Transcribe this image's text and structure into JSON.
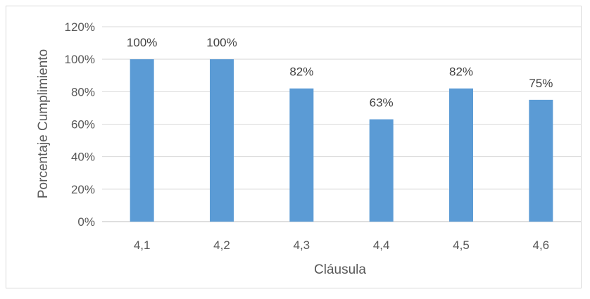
{
  "chart_data": {
    "type": "bar",
    "categories": [
      "4,1",
      "4,2",
      "4,3",
      "4,4",
      "4,5",
      "4,6"
    ],
    "values": [
      100,
      100,
      82,
      63,
      82,
      75
    ],
    "data_labels": [
      "100%",
      "100%",
      "82%",
      "63%",
      "82%",
      "75%"
    ],
    "title": "",
    "xlabel": "Cláusula",
    "ylabel": "Porcentaje Cumplimiento",
    "ylim": [
      0,
      120
    ],
    "yticks": [
      0,
      20,
      40,
      60,
      80,
      100,
      120
    ],
    "ytick_labels": [
      "0%",
      "20%",
      "40%",
      "60%",
      "80%",
      "100%",
      "120%"
    ],
    "grid": true,
    "legend": "none",
    "colors": {
      "bar": "#5b9bd5",
      "grid": "#d9d9d9",
      "axis": "#bfbfbf",
      "text": "#595959"
    }
  }
}
